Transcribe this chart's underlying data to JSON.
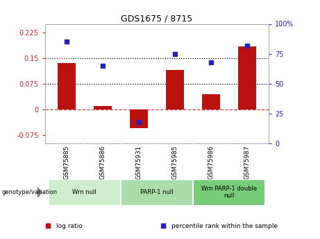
{
  "title": "GDS1675 / 8715",
  "categories": [
    "GSM75885",
    "GSM75886",
    "GSM75931",
    "GSM75985",
    "GSM75986",
    "GSM75987"
  ],
  "log_ratio": [
    0.135,
    0.01,
    -0.055,
    0.115,
    0.045,
    0.185
  ],
  "percentile_rank": [
    85,
    65,
    18,
    75,
    68,
    82
  ],
  "bar_color": "#bb1111",
  "dot_color": "#2222bb",
  "ylim_left": [
    -0.1,
    0.25
  ],
  "ylim_right": [
    0,
    100
  ],
  "yticks_left": [
    -0.075,
    0,
    0.075,
    0.15,
    0.225
  ],
  "yticks_right": [
    0,
    25,
    50,
    75,
    100
  ],
  "hlines": [
    0.075,
    0.15
  ],
  "zero_line": 0.0,
  "genotype_groups": [
    {
      "label": "Wrn null",
      "start": 0,
      "end": 2,
      "color": "#cceecc"
    },
    {
      "label": "PARP-1 null",
      "start": 2,
      "end": 4,
      "color": "#aaddaa"
    },
    {
      "label": "Wrn PARP-1 double\nnull",
      "start": 4,
      "end": 6,
      "color": "#77cc77"
    }
  ],
  "legend_items": [
    {
      "label": "log ratio",
      "color": "#bb1111"
    },
    {
      "label": "percentile rank within the sample",
      "color": "#2222bb"
    }
  ],
  "left_axis_color": "#cc2222",
  "right_axis_color": "#2222bb",
  "label_bg_color": "#cccccc",
  "bar_width": 0.5
}
